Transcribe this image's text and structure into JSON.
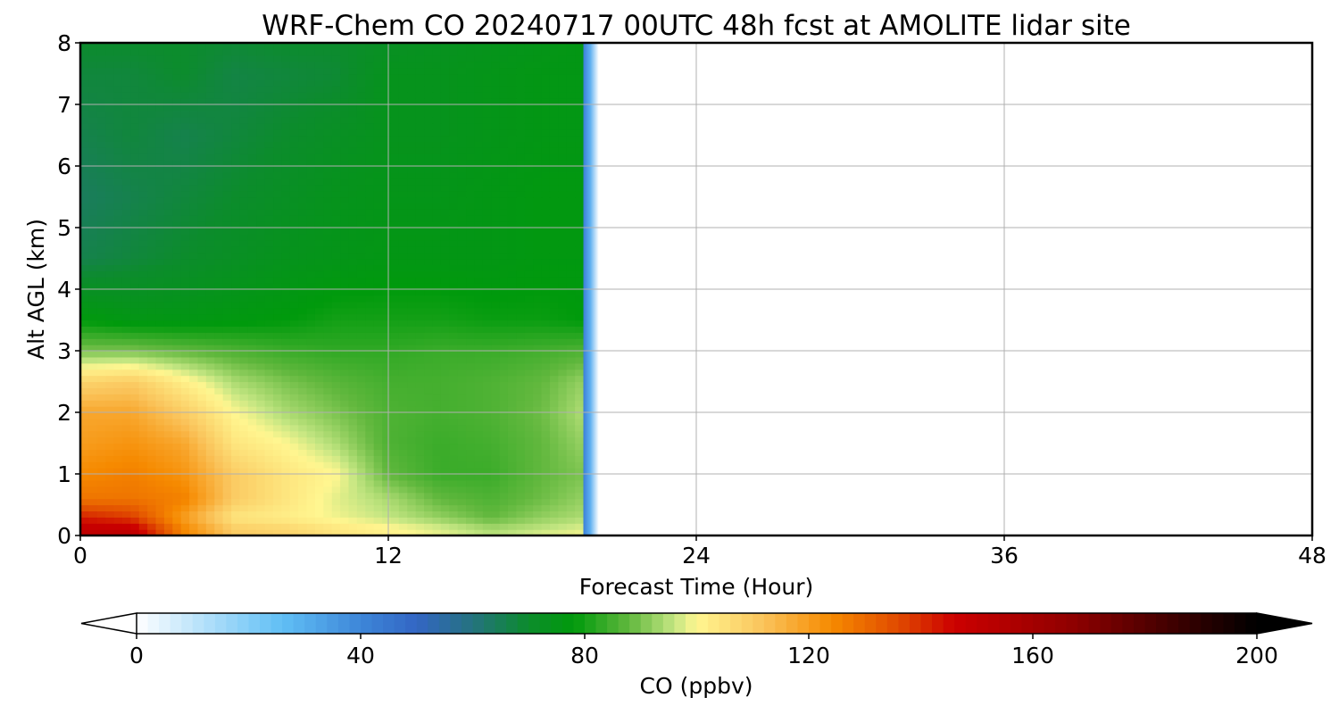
{
  "chart_data": {
    "type": "heatmap",
    "title": "WRF-Chem CO  20240717 00UTC 48h fcst at AMOLITE lidar site",
    "xlabel": "Forecast Time (Hour)",
    "ylabel": "Alt AGL (km)",
    "xlim": [
      0,
      48
    ],
    "ylim": [
      0,
      8
    ],
    "xticks": [
      0,
      12,
      24,
      36,
      48
    ],
    "yticks": [
      0,
      1,
      2,
      3,
      4,
      5,
      6,
      7,
      8
    ],
    "grid": true,
    "data_end_hour": 19.6,
    "colorbar": {
      "label": "CO  (ppbv)",
      "range": [
        0,
        200
      ],
      "ticks": [
        0,
        40,
        80,
        120,
        160,
        200
      ],
      "extend": "both",
      "colors": [
        {
          "v": 0,
          "c": "#ffffff"
        },
        {
          "v": 12,
          "c": "#b4e0fa"
        },
        {
          "v": 26,
          "c": "#60bff5"
        },
        {
          "v": 40,
          "c": "#3d86d8"
        },
        {
          "v": 50,
          "c": "#3366c4"
        },
        {
          "v": 60,
          "c": "#24727e"
        },
        {
          "v": 70,
          "c": "#0c8c2c"
        },
        {
          "v": 78,
          "c": "#009a0c"
        },
        {
          "v": 88,
          "c": "#62b83e"
        },
        {
          "v": 96,
          "c": "#c4e682"
        },
        {
          "v": 100,
          "c": "#fff690"
        },
        {
          "v": 112,
          "c": "#fac35a"
        },
        {
          "v": 124,
          "c": "#f68a00"
        },
        {
          "v": 136,
          "c": "#e04a00"
        },
        {
          "v": 146,
          "c": "#cc0000"
        },
        {
          "v": 168,
          "c": "#8c0000"
        },
        {
          "v": 186,
          "c": "#3a0000"
        },
        {
          "v": 200,
          "c": "#000000"
        }
      ]
    },
    "hours": [
      0,
      2,
      4,
      6,
      8,
      10,
      12,
      14,
      16,
      18,
      19.5
    ],
    "altitudes_km": [
      0,
      0.1,
      0.3,
      0.6,
      1.0,
      1.5,
      2.0,
      2.5,
      3.0,
      3.5,
      4.5,
      5.5,
      6.5,
      7.5,
      8.0
    ],
    "values_ppbv": [
      [
        150,
        152,
        125,
        110,
        108,
        104,
        101,
        98,
        95,
        98,
        99
      ],
      [
        150,
        150,
        125,
        110,
        108,
        104,
        101,
        98,
        94,
        96,
        98
      ],
      [
        142,
        138,
        120,
        104,
        102,
        99,
        96,
        92,
        88,
        92,
        94
      ],
      [
        128,
        128,
        126,
        110,
        104,
        98,
        94,
        88,
        86,
        89,
        92
      ],
      [
        124,
        126,
        122,
        110,
        104,
        100,
        88,
        84,
        84,
        88,
        90
      ],
      [
        120,
        122,
        118,
        104,
        100,
        94,
        86,
        84,
        85,
        88,
        92
      ],
      [
        118,
        118,
        110,
        100,
        94,
        90,
        86,
        85,
        86,
        89,
        94
      ],
      [
        108,
        110,
        102,
        94,
        90,
        87,
        85,
        85,
        86,
        88,
        92
      ],
      [
        90,
        90,
        88,
        86,
        84,
        83,
        83,
        84,
        84,
        85,
        86
      ],
      [
        78,
        76,
        76,
        77,
        78,
        80,
        80,
        80,
        79,
        79,
        78
      ],
      [
        66,
        68,
        70,
        72,
        74,
        75,
        76,
        76,
        76,
        77,
        77
      ],
      [
        64,
        66,
        68,
        70,
        72,
        74,
        75,
        75,
        76,
        77,
        77
      ],
      [
        66,
        68,
        66,
        68,
        70,
        72,
        74,
        74,
        75,
        76,
        76
      ],
      [
        68,
        68,
        70,
        67,
        68,
        69,
        74,
        74,
        75,
        76,
        76
      ],
      [
        70,
        70,
        70,
        69,
        70,
        70,
        72,
        73,
        74,
        75,
        76
      ]
    ]
  }
}
